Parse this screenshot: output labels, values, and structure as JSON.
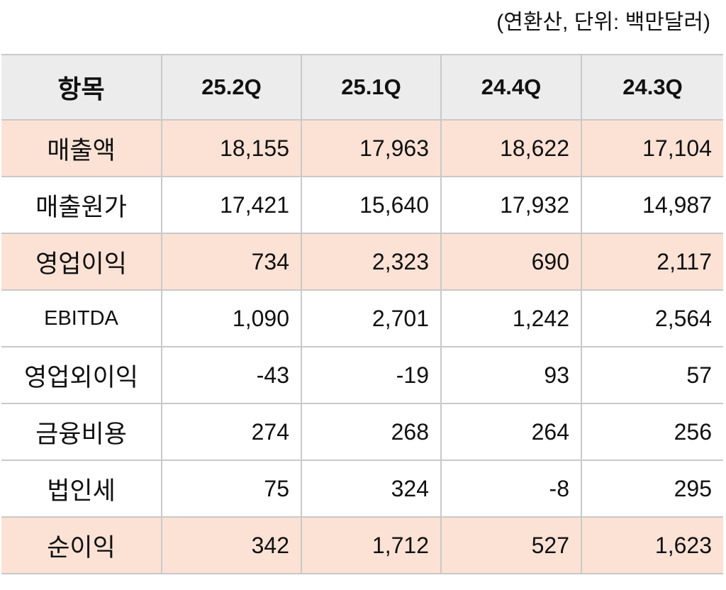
{
  "note": "(연환산, 단위: 백만달러)",
  "table": {
    "header": [
      "항목",
      "25.2Q",
      "25.1Q",
      "24.4Q",
      "24.3Q"
    ],
    "rows": [
      [
        "매출액",
        "18,155",
        "17,963",
        "18,622",
        "17,104"
      ],
      [
        "매출원가",
        "17,421",
        "15,640",
        "17,932",
        "14,987"
      ],
      [
        "영업이익",
        "734",
        "2,323",
        "690",
        "2,117"
      ],
      [
        "EBITDA",
        "1,090",
        "2,701",
        "1,242",
        "2,564"
      ],
      [
        "영업외이익",
        "-43",
        "-19",
        "93",
        "57"
      ],
      [
        "금융비용",
        "274",
        "268",
        "264",
        "256"
      ],
      [
        "법인세",
        "75",
        "324",
        "-8",
        "295"
      ],
      [
        "순이익",
        "342",
        "1,712",
        "527",
        "1,623"
      ]
    ]
  }
}
